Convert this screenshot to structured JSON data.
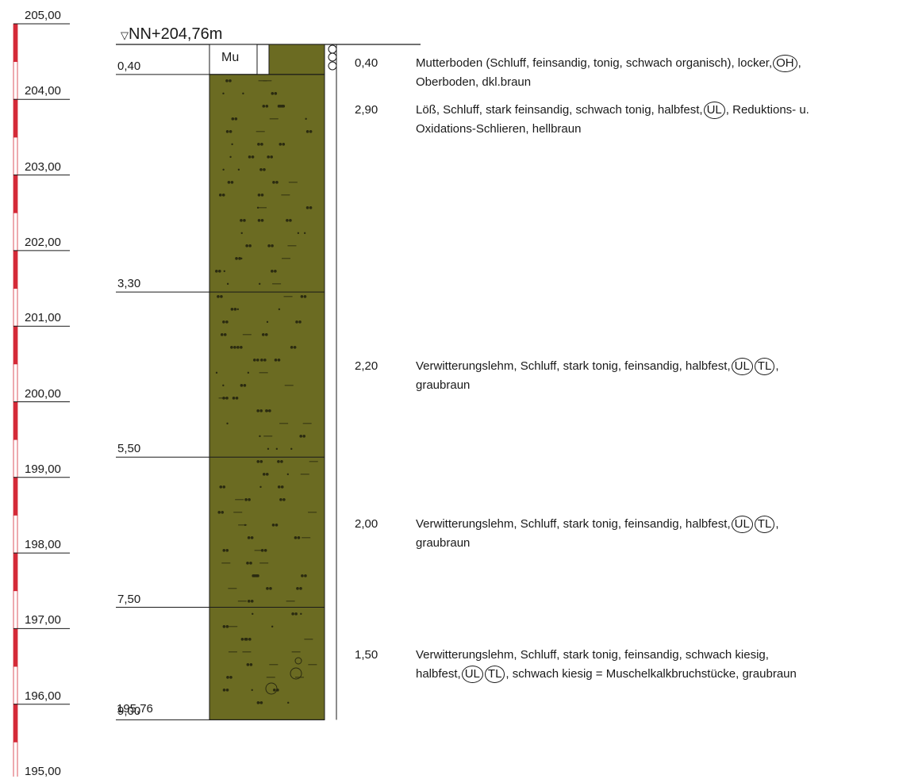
{
  "scale": {
    "labels": [
      "205,00",
      "204,00",
      "203,00",
      "202,00",
      "201,00",
      "200,00",
      "199,00",
      "198,00",
      "197,00",
      "196,00",
      "195,00"
    ],
    "bar_colors": [
      "#d42a38",
      "#ffffff"
    ]
  },
  "profile": {
    "top_label": "NN+204,76m",
    "bottom_elevation": "195,76",
    "fill_color": "#6b6b22",
    "topsoil_symbol": "Mu",
    "layers": [
      {
        "bottom_depth": 0.4,
        "depth_label": "0,40",
        "thickness": "0,40",
        "parts": [
          {
            "t": "Mutterboden (Schluff, feinsandig, tonig, schwach organisch), locker,"
          },
          {
            "c": "OH"
          },
          {
            "t": ","
          },
          {
            "br": true
          },
          {
            "t": "Oberboden, dkl.braun"
          }
        ]
      },
      {
        "bottom_depth": 3.3,
        "depth_label": "3,30",
        "thickness": "2,90",
        "parts": [
          {
            "t": "Löß, Schluff, stark feinsandig, schwach tonig, halbfest,"
          },
          {
            "c": "UL"
          },
          {
            "t": ", Reduktions- u."
          },
          {
            "br": true
          },
          {
            "t": "Oxidations-Schlieren, hellbraun"
          }
        ]
      },
      {
        "bottom_depth": 5.5,
        "depth_label": "5,50",
        "thickness": "2,20",
        "parts": [
          {
            "t": "Verwitterungslehm, Schluff, stark tonig, feinsandig, halbfest,"
          },
          {
            "c": "UL"
          },
          {
            "c": "TL"
          },
          {
            "t": ","
          },
          {
            "br": true
          },
          {
            "t": "graubraun"
          }
        ]
      },
      {
        "bottom_depth": 7.5,
        "depth_label": "7,50",
        "thickness": "2,00",
        "parts": [
          {
            "t": "Verwitterungslehm, Schluff, stark tonig, feinsandig, halbfest,"
          },
          {
            "c": "UL"
          },
          {
            "c": "TL"
          },
          {
            "t": ","
          },
          {
            "br": true
          },
          {
            "t": "graubraun"
          }
        ]
      },
      {
        "bottom_depth": 9.0,
        "depth_label": "9,00",
        "thickness": "1,50",
        "parts": [
          {
            "t": "Verwitterungslehm, Schluff, stark tonig, feinsandig, schwach kiesig,"
          },
          {
            "br": true
          },
          {
            "t": "halbfest,"
          },
          {
            "c": "UL"
          },
          {
            "c": "TL"
          },
          {
            "t": ", schwach kiesig = Muschelkalkbruchstücke, graubraun"
          }
        ]
      }
    ]
  }
}
